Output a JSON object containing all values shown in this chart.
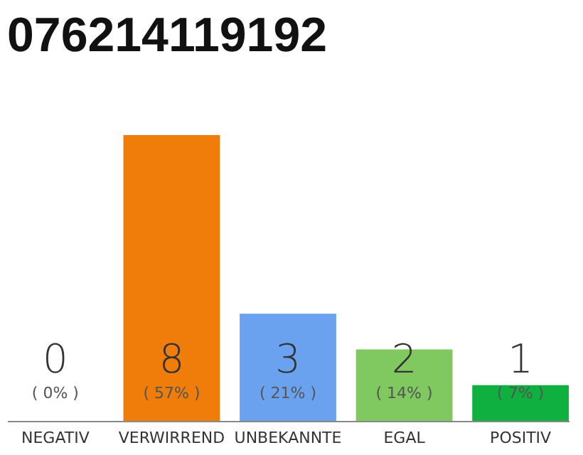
{
  "chart_data": {
    "type": "bar",
    "title": "076214119192",
    "categories": [
      "NEGATIV",
      "VERWIRREND",
      "UNBEKANNTE",
      "EGAL",
      "POSITIV"
    ],
    "values": [
      0,
      8,
      3,
      2,
      1
    ],
    "colors": [
      "#999999",
      "#f07d0a",
      "#6aa2f0",
      "#80c860",
      "#10b040"
    ],
    "data_labels": true,
    "annotations": [
      "( 0% )",
      "( 57% )",
      "( 21% )",
      "( 14% )",
      "( 7% )"
    ]
  }
}
